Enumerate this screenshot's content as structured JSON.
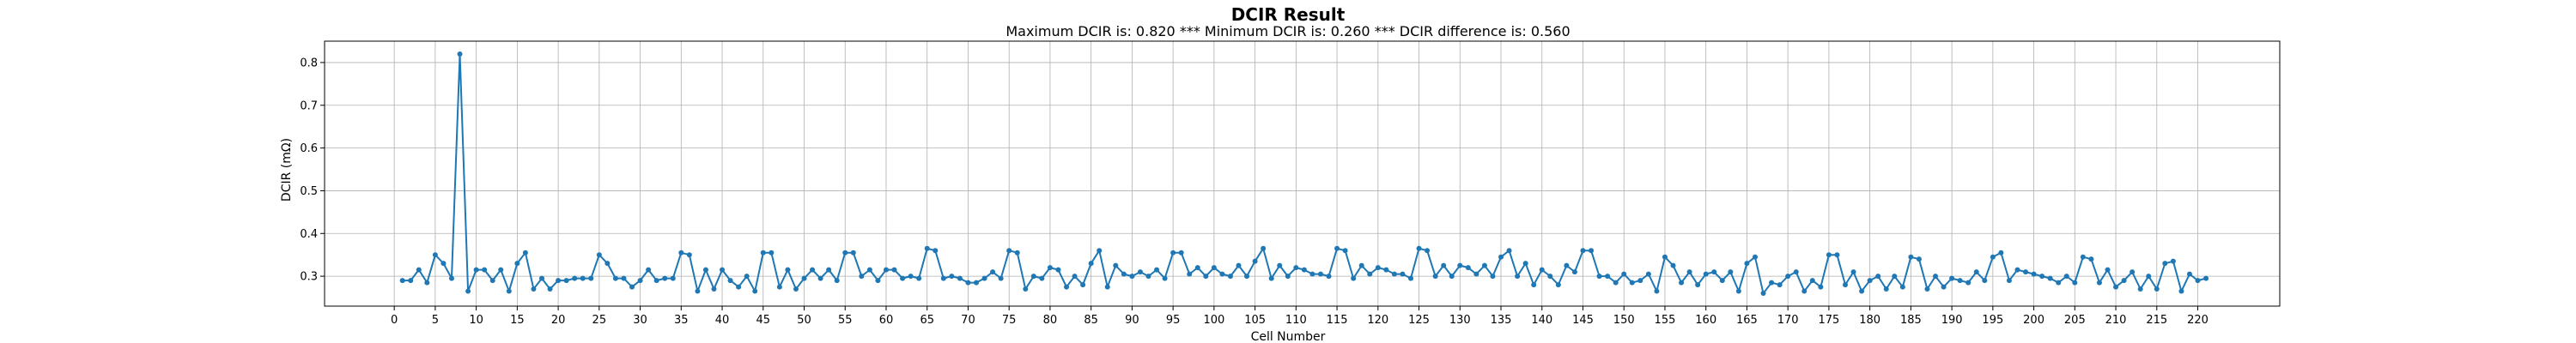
{
  "chart_data": {
    "type": "line",
    "title": "DCIR Result",
    "subtitle": "Maximum DCIR is: 0.820 *** Minimum DCIR is: 0.260 *** DCIR difference is: 0.560",
    "xlabel": "Cell Number",
    "ylabel": "DCIR (mΩ)",
    "xlim": [
      -8.5,
      230
    ],
    "ylim": [
      0.23,
      0.85
    ],
    "xticks": [
      0,
      5,
      10,
      15,
      20,
      25,
      30,
      35,
      40,
      45,
      50,
      55,
      60,
      65,
      70,
      75,
      80,
      85,
      90,
      95,
      100,
      105,
      110,
      115,
      120,
      125,
      130,
      135,
      140,
      145,
      150,
      155,
      160,
      165,
      170,
      175,
      180,
      185,
      190,
      195,
      200,
      205,
      210,
      215,
      220
    ],
    "yticks": [
      0.3,
      0.4,
      0.5,
      0.6,
      0.7,
      0.8
    ],
    "grid": true,
    "color": "#1f77b4",
    "marker": "circle",
    "x_start": 1,
    "values": [
      0.29,
      0.29,
      0.315,
      0.285,
      0.35,
      0.33,
      0.295,
      0.82,
      0.265,
      0.315,
      0.315,
      0.29,
      0.315,
      0.265,
      0.33,
      0.355,
      0.27,
      0.295,
      0.27,
      0.29,
      0.29,
      0.295,
      0.295,
      0.295,
      0.35,
      0.33,
      0.295,
      0.295,
      0.275,
      0.29,
      0.315,
      0.29,
      0.295,
      0.295,
      0.355,
      0.35,
      0.265,
      0.315,
      0.27,
      0.315,
      0.29,
      0.275,
      0.3,
      0.265,
      0.355,
      0.355,
      0.275,
      0.315,
      0.27,
      0.295,
      0.315,
      0.295,
      0.315,
      0.29,
      0.355,
      0.355,
      0.3,
      0.315,
      0.29,
      0.315,
      0.315,
      0.295,
      0.3,
      0.295,
      0.365,
      0.36,
      0.295,
      0.3,
      0.295,
      0.285,
      0.285,
      0.295,
      0.31,
      0.295,
      0.36,
      0.355,
      0.27,
      0.3,
      0.295,
      0.32,
      0.315,
      0.275,
      0.3,
      0.28,
      0.33,
      0.36,
      0.275,
      0.325,
      0.305,
      0.3,
      0.31,
      0.3,
      0.315,
      0.295,
      0.355,
      0.355,
      0.305,
      0.32,
      0.3,
      0.32,
      0.305,
      0.3,
      0.325,
      0.3,
      0.335,
      0.365,
      0.295,
      0.325,
      0.3,
      0.32,
      0.315,
      0.305,
      0.305,
      0.3,
      0.365,
      0.36,
      0.295,
      0.325,
      0.305,
      0.32,
      0.315,
      0.305,
      0.305,
      0.295,
      0.365,
      0.36,
      0.3,
      0.325,
      0.3,
      0.325,
      0.32,
      0.305,
      0.325,
      0.3,
      0.345,
      0.36,
      0.3,
      0.33,
      0.28,
      0.315,
      0.3,
      0.28,
      0.325,
      0.31,
      0.36,
      0.36,
      0.3,
      0.3,
      0.285,
      0.305,
      0.285,
      0.29,
      0.305,
      0.265,
      0.345,
      0.325,
      0.285,
      0.31,
      0.28,
      0.305,
      0.31,
      0.29,
      0.31,
      0.265,
      0.33,
      0.345,
      0.26,
      0.285,
      0.28,
      0.3,
      0.31,
      0.265,
      0.29,
      0.275,
      0.35,
      0.35,
      0.28,
      0.31,
      0.265,
      0.29,
      0.3,
      0.27,
      0.3,
      0.275,
      0.345,
      0.34,
      0.27,
      0.3,
      0.275,
      0.295,
      0.29,
      0.285,
      0.31,
      0.29,
      0.345,
      0.355,
      0.29,
      0.315,
      0.31,
      0.305,
      0.3,
      0.295,
      0.285,
      0.3,
      0.285,
      0.345,
      0.34,
      0.285,
      0.315,
      0.275,
      0.29,
      0.31,
      0.27,
      0.3,
      0.27,
      0.33,
      0.335,
      0.265,
      0.305,
      0.29,
      0.295
    ]
  }
}
